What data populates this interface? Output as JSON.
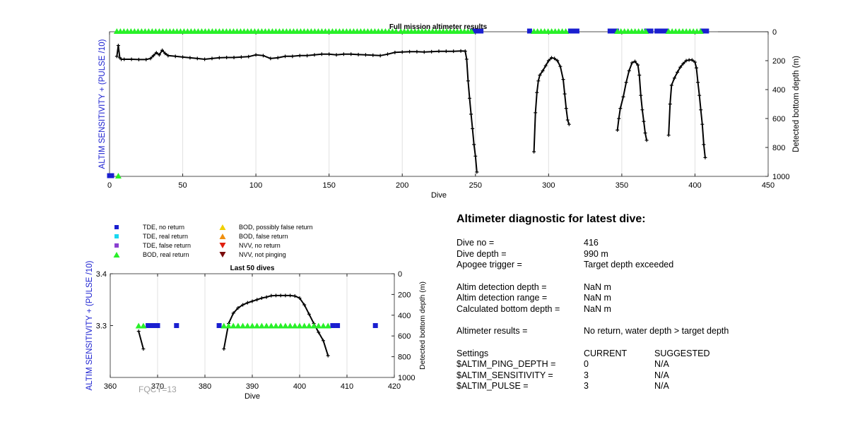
{
  "chart_data": [
    {
      "type": "line",
      "title": "Full mission altimeter results",
      "xlabel": "Dive",
      "ylabel_left": "ALTIM SENSITIVITY + (PULSE /10)",
      "ylabel_right": "Detected bottom depth (m)",
      "xlim": [
        0,
        450
      ],
      "ylim_right": [
        1000,
        0
      ],
      "xticks": [
        0,
        50,
        100,
        150,
        200,
        250,
        300,
        350,
        400,
        450
      ],
      "yticks_right": [
        0,
        200,
        400,
        600,
        800,
        1000
      ],
      "grid": "x",
      "series": [
        {
          "name": "Detected bottom depth",
          "color": "#000000",
          "segments": [
            [
              [
                5,
                170
              ],
              [
                6,
                95
              ],
              [
                7,
                180
              ],
              [
                8,
                190
              ],
              [
                10,
                190
              ],
              [
                15,
                190
              ],
              [
                20,
                192
              ],
              [
                25,
                192
              ],
              [
                28,
                185
              ],
              [
                30,
                165
              ],
              [
                32,
                145
              ],
              [
                34,
                160
              ],
              [
                36,
                128
              ],
              [
                38,
                150
              ],
              [
                40,
                165
              ],
              [
                45,
                170
              ],
              [
                50,
                175
              ],
              [
                55,
                180
              ],
              [
                60,
                185
              ],
              [
                65,
                190
              ],
              [
                70,
                185
              ],
              [
                75,
                180
              ],
              [
                80,
                178
              ],
              [
                85,
                178
              ],
              [
                90,
                175
              ],
              [
                95,
                172
              ],
              [
                100,
                160
              ],
              [
                105,
                165
              ],
              [
                110,
                185
              ],
              [
                115,
                180
              ],
              [
                120,
                170
              ],
              [
                125,
                170
              ],
              [
                130,
                165
              ],
              [
                135,
                165
              ],
              [
                140,
                160
              ],
              [
                145,
                155
              ],
              [
                150,
                155
              ],
              [
                155,
                160
              ],
              [
                160,
                155
              ],
              [
                165,
                155
              ],
              [
                170,
                158
              ],
              [
                175,
                160
              ],
              [
                180,
                162
              ],
              [
                185,
                165
              ],
              [
                190,
                155
              ],
              [
                195,
                143
              ],
              [
                200,
                140
              ],
              [
                205,
                138
              ],
              [
                210,
                138
              ],
              [
                215,
                140
              ],
              [
                220,
                138
              ],
              [
                225,
                135
              ],
              [
                230,
                135
              ],
              [
                235,
                135
              ],
              [
                240,
                133
              ],
              [
                243,
                134
              ],
              [
                244,
                190
              ],
              [
                245,
                340
              ],
              [
                246,
                460
              ],
              [
                247,
                570
              ],
              [
                248,
                670
              ],
              [
                249,
                780
              ],
              [
                250,
                860
              ],
              [
                251,
                970
              ]
            ],
            [
              [
                290,
                830
              ],
              [
                291,
                560
              ],
              [
                292,
                420
              ],
              [
                293,
                340
              ],
              [
                294,
                300
              ],
              [
                296,
                270
              ],
              [
                298,
                235
              ],
              [
                300,
                200
              ],
              [
                302,
                180
              ],
              [
                304,
                185
              ],
              [
                306,
                200
              ],
              [
                308,
                240
              ],
              [
                310,
                330
              ],
              [
                311,
                430
              ],
              [
                312,
                530
              ],
              [
                313,
                610
              ],
              [
                314,
                640
              ]
            ],
            [
              [
                347,
                680
              ],
              [
                348,
                600
              ],
              [
                349,
                530
              ],
              [
                351,
                450
              ],
              [
                353,
                350
              ],
              [
                355,
                270
              ],
              [
                357,
                215
              ],
              [
                359,
                205
              ],
              [
                361,
                230
              ],
              [
                362,
                300
              ],
              [
                363,
                440
              ],
              [
                364,
                540
              ],
              [
                365,
                620
              ],
              [
                366,
                700
              ],
              [
                367,
                750
              ]
            ],
            [
              [
                382,
                715
              ],
              [
                383,
                500
              ],
              [
                384,
                370
              ],
              [
                386,
                320
              ],
              [
                388,
                280
              ],
              [
                390,
                245
              ],
              [
                392,
                220
              ],
              [
                394,
                200
              ],
              [
                396,
                195
              ],
              [
                398,
                195
              ],
              [
                400,
                210
              ],
              [
                401,
                250
              ],
              [
                402,
                350
              ],
              [
                403,
                440
              ],
              [
                404,
                540
              ],
              [
                405,
                640
              ],
              [
                406,
                780
              ],
              [
                407,
                870
              ]
            ]
          ]
        }
      ],
      "markers": {
        "bod_real_return_top": [
          [
            5,
            33
          ],
          [
            34,
            197
          ],
          [
            199,
            248
          ],
          [
            290,
            314
          ],
          [
            347,
            367
          ],
          [
            382,
            405
          ]
        ],
        "tde_no_return_top": [
          [
            248,
            255
          ],
          [
            287,
            288
          ],
          [
            315,
            320
          ],
          [
            342,
            347
          ],
          [
            367,
            371
          ],
          [
            374,
            377
          ],
          [
            379,
            381
          ],
          [
            405,
            409
          ]
        ],
        "tde_no_return_bottom": [
          [
            0,
            2
          ]
        ],
        "bod_real_return_bottom": [
          6
        ]
      }
    },
    {
      "type": "line",
      "title": "Last 50 dives",
      "xlabel": "Dive",
      "ylabel_left": "ALTIM SENSITIVITY + (PULSE /10)",
      "ylabel_right": "Detected bottom depth (m)",
      "xlim": [
        360,
        420
      ],
      "ylim_left": [
        3.2,
        3.4
      ],
      "ylim_right": [
        1000,
        0
      ],
      "xticks": [
        360,
        370,
        380,
        390,
        400,
        410,
        420
      ],
      "yticks_left": [
        3.3,
        3.4
      ],
      "yticks_right": [
        0,
        200,
        400,
        600,
        800,
        1000
      ],
      "grid": "x",
      "series": [
        {
          "name": "Detected bottom depth",
          "color": "#000000",
          "segments": [
            [
              [
                366,
                555
              ],
              [
                367,
                725
              ]
            ],
            [
              [
                384,
                725
              ],
              [
                385,
                480
              ],
              [
                386,
                380
              ],
              [
                387,
                330
              ],
              [
                388,
                300
              ],
              [
                389,
                280
              ],
              [
                390,
                265
              ],
              [
                391,
                250
              ],
              [
                392,
                235
              ],
              [
                393,
                225
              ],
              [
                394,
                212
              ],
              [
                395,
                210
              ],
              [
                396,
                210
              ],
              [
                397,
                210
              ],
              [
                398,
                210
              ],
              [
                399,
                215
              ],
              [
                400,
                235
              ],
              [
                401,
                300
              ],
              [
                402,
                390
              ],
              [
                403,
                480
              ],
              [
                404,
                565
              ],
              [
                405,
                645
              ],
              [
                406,
                790
              ]
            ]
          ]
        }
      ],
      "markers": {
        "level": 3.3,
        "bod_real_return": [
          366,
          367,
          384,
          385,
          386,
          387,
          388,
          389,
          390,
          391,
          392,
          393,
          394,
          395,
          396,
          397,
          398,
          399,
          400,
          401,
          402,
          403,
          404,
          405,
          406
        ],
        "tde_no_return": [
          368,
          369,
          370,
          374,
          383,
          407,
          408,
          416
        ]
      }
    }
  ],
  "legend": {
    "items": [
      {
        "label": "TDE, no return",
        "shape": "square",
        "color": "#1a1fd0"
      },
      {
        "label": "TDE, real return",
        "shape": "square",
        "color": "#18d8f0"
      },
      {
        "label": "TDE, false return",
        "shape": "square",
        "color": "#8a3fd0"
      },
      {
        "label": "BOD, real return",
        "shape": "triangle-up",
        "color": "#28f028"
      },
      {
        "label": "BOD, possibly false return",
        "shape": "triangle-up",
        "color": "#f0d000"
      },
      {
        "label": "BOD, false return",
        "shape": "triangle-up",
        "color": "#f09010"
      },
      {
        "label": "NVV, no return",
        "shape": "triangle-down",
        "color": "#e02010"
      },
      {
        "label": "NVV, not pinging",
        "shape": "triangle-down",
        "color": "#7a0c0c"
      }
    ]
  },
  "fqcy": "FQCY=13",
  "diagnostic": {
    "title": "Altimeter diagnostic for latest dive:",
    "rows": [
      {
        "label": "Dive no =",
        "value": "416"
      },
      {
        "label": "Dive depth =",
        "value": "990 m"
      },
      {
        "label": "Apogee trigger =",
        "value": "Target depth exceeded"
      },
      {
        "label": "Altim detection depth =",
        "value": "NaN m"
      },
      {
        "label": "Altim detection range =",
        "value": "NaN m"
      },
      {
        "label": "Calculated bottom depth =",
        "value": "NaN m"
      },
      {
        "label": "Altimeter results =",
        "value": "No return, water depth > target depth"
      }
    ],
    "settings": {
      "header": {
        "label": "Settings",
        "current": "CURRENT",
        "suggested": "SUGGESTED"
      },
      "rows": [
        {
          "label": "$ALTIM_PING_DEPTH =",
          "current": "0",
          "suggested": "N/A"
        },
        {
          "label": "$ALTIM_SENSITIVITY =",
          "current": "3",
          "suggested": "N/A"
        },
        {
          "label": "$ALTIM_PULSE =",
          "current": "3",
          "suggested": "N/A"
        }
      ]
    }
  },
  "colors": {
    "left_axis_label": "#1a1fd0",
    "grid": "#e0e0e0",
    "tde_no_return": "#1a1fd0",
    "bod_real_return": "#28f028"
  }
}
